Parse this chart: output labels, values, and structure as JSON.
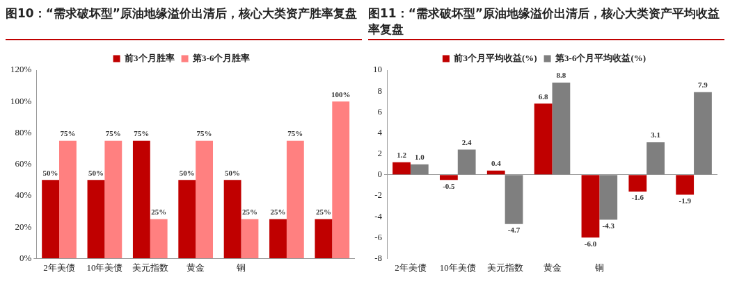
{
  "chart_data": [
    {
      "type": "bar",
      "title": "图10：“需求破坏型”原油地缘溢价出清后，核心大类资产胜率复盘",
      "categories": [
        "2年美债",
        "10年美债",
        "美元指数",
        "黄金",
        "铜",
        null,
        null
      ],
      "series": [
        {
          "name": "前3个月胜率",
          "color": "#c00000",
          "values": [
            50,
            50,
            75,
            50,
            50,
            25,
            25
          ],
          "value_labels": [
            "50%",
            "50%",
            "75%",
            "50%",
            "50%",
            "25%",
            "25%"
          ]
        },
        {
          "name": "第3-6个月胜率",
          "color": "#ff8080",
          "values": [
            75,
            75,
            25,
            75,
            25,
            75,
            100
          ],
          "value_labels": [
            "75%",
            "75%",
            "25%",
            "75%",
            "25%",
            "75%",
            "100%"
          ]
        }
      ],
      "ylim": [
        0,
        120
      ],
      "yticks": [
        {
          "value": 0,
          "label": "0%"
        },
        {
          "value": 20,
          "label": "20%"
        },
        {
          "value": 40,
          "label": "40%"
        },
        {
          "value": 60,
          "label": "60%"
        },
        {
          "value": 80,
          "label": "80%"
        },
        {
          "value": 100,
          "label": "100%"
        },
        {
          "value": 120,
          "label": "120%"
        }
      ],
      "legend": "top"
    },
    {
      "type": "bar",
      "title": "图11：“需求破坏型”原油地缘溢价出清后，核心大类资产平均收益率复盘",
      "categories": [
        "2年美债",
        "10年美债",
        "美元指数",
        "黄金",
        "铜",
        null,
        null
      ],
      "series": [
        {
          "name": "前3个月平均收益(%)",
          "color": "#c00000",
          "values": [
            1.2,
            -0.5,
            0.4,
            6.8,
            -6.0,
            -1.6,
            -1.9
          ],
          "value_labels": [
            "1.2",
            "-0.5",
            "0.4",
            "6.8",
            "-6.0",
            "-1.6",
            "-1.9"
          ]
        },
        {
          "name": "第3-6个月平均收益(%)",
          "color": "#7f7f7f",
          "values": [
            1.0,
            2.4,
            -4.7,
            8.8,
            -4.3,
            3.1,
            7.9
          ],
          "value_labels": [
            "1.0",
            "2.4",
            "-4.7",
            "8.8",
            "-4.3",
            "3.1",
            "7.9"
          ]
        }
      ],
      "ylim": [
        -8,
        10
      ],
      "yticks": [
        -8,
        -6,
        -4,
        -2,
        0,
        2,
        4,
        6,
        8,
        10
      ],
      "legend": "top"
    }
  ]
}
